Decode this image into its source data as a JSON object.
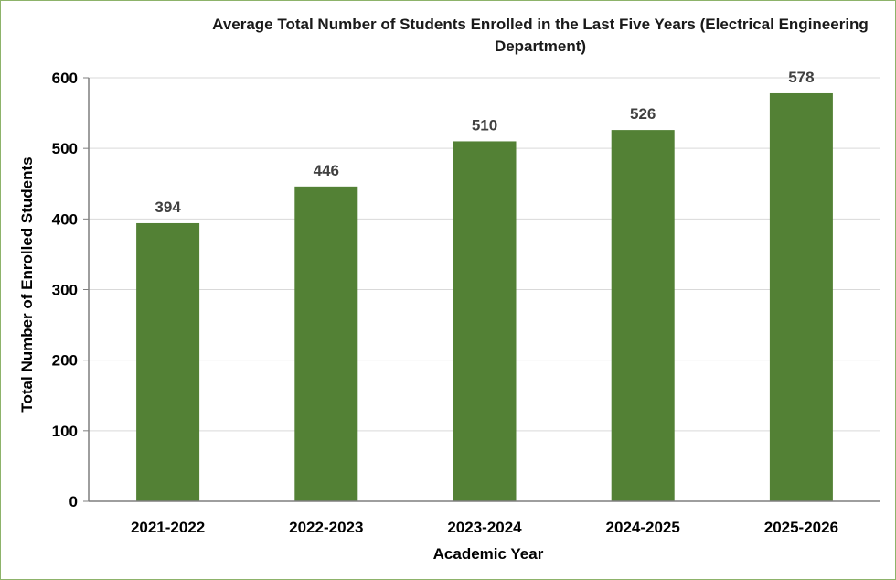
{
  "chart_data": {
    "type": "bar",
    "title_lines": [
      "Average Total Number of Students Enrolled in the Last Five Years (Electrical Engineering",
      "Department)"
    ],
    "xlabel": "Academic Year",
    "ylabel": "Total Number of Enrolled Students",
    "categories": [
      "2021-2022",
      "2022-2023",
      "2023-2024",
      "2024-2025",
      "2025-2026"
    ],
    "values": [
      394,
      446,
      510,
      526,
      578
    ],
    "data_labels": [
      "394",
      "446",
      "510",
      "526",
      "578"
    ],
    "ylim": [
      0,
      600
    ],
    "yticks": [
      0,
      100,
      200,
      300,
      400,
      500,
      600
    ],
    "grid": true,
    "legend": "none",
    "colors": {
      "bar": "#538135",
      "grid": "#d9d9d9",
      "axis": "#7f7f7f",
      "frame": "#8db36a",
      "data_label": "#404040"
    }
  }
}
